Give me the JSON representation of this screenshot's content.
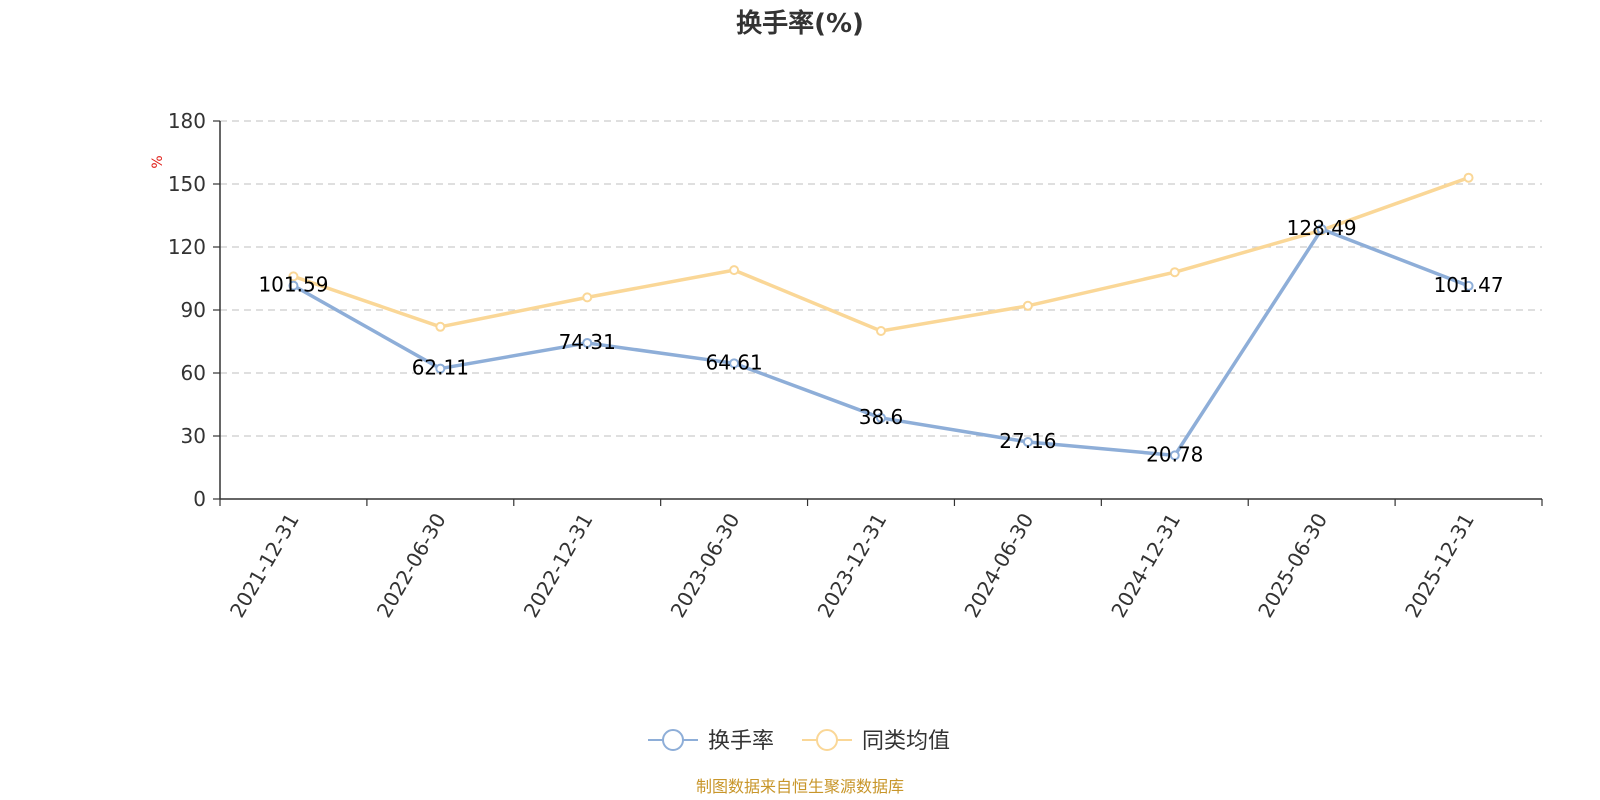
{
  "chart_data": {
    "type": "line",
    "title": "换手率(%)",
    "ylabel": "%",
    "xlabel": "",
    "ylim": [
      0,
      180
    ],
    "yticks": [
      "0",
      "30",
      "60",
      "90",
      "120",
      "150",
      "180"
    ],
    "grid": true,
    "legend_position": "bottom",
    "categories": [
      "2021-12-31",
      "2022-06-30",
      "2022-12-31",
      "2023-06-30",
      "2023-12-31",
      "2024-06-30",
      "2024-12-31",
      "2025-06-30",
      "2025-12-31"
    ],
    "series": [
      {
        "name": "换手率",
        "color": "#8eaed8",
        "values": [
          101.59,
          62.11,
          74.31,
          64.61,
          38.6,
          27.16,
          20.78,
          128.49,
          101.47
        ],
        "labels": [
          "101.59",
          "62.11",
          "74.31",
          "64.61",
          "38.6",
          "27.16",
          "20.78",
          "128.49",
          "101.47"
        ]
      },
      {
        "name": "同类均值",
        "color": "#fad797",
        "values": [
          106,
          82,
          96,
          109,
          80,
          92,
          108,
          128,
          153
        ]
      }
    ],
    "source": "制图数据来自恒生聚源数据库",
    "source_color": "#c8962a",
    "unit_color": "#e0201a"
  }
}
